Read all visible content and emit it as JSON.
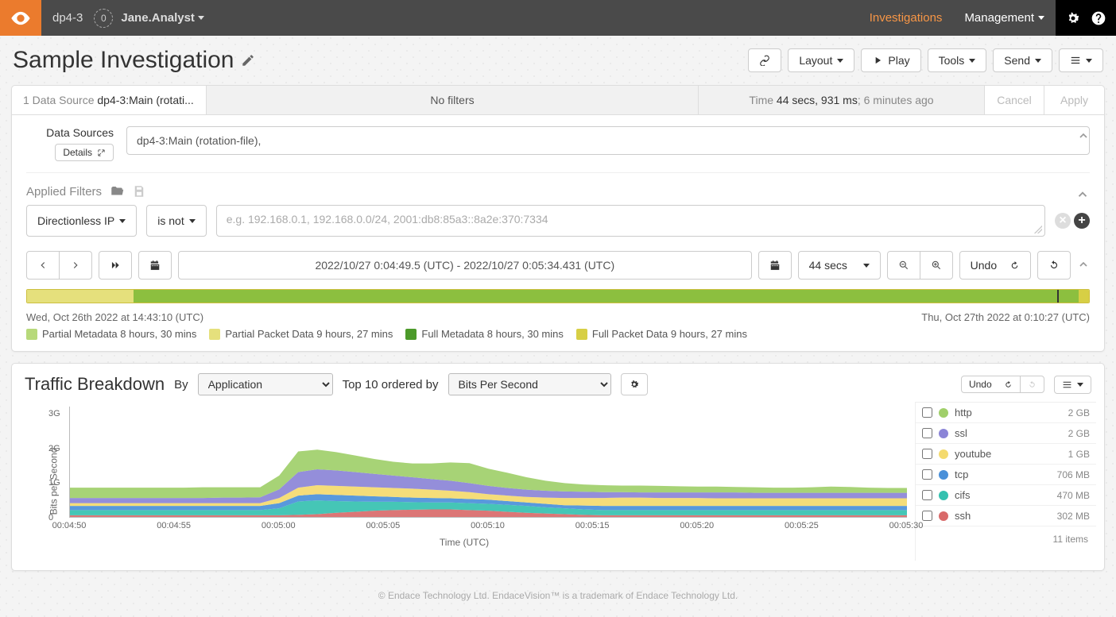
{
  "nav": {
    "host": "dp4-3",
    "badge_count": "0",
    "user": "Jane.Analyst",
    "links": {
      "investigations": "Investigations",
      "management": "Management"
    }
  },
  "page": {
    "title": "Sample Investigation",
    "toolbar": {
      "layout": "Layout",
      "play": "Play",
      "tools": "Tools",
      "send": "Send"
    }
  },
  "tabstrip": {
    "ds_prefix": "1 Data Source ",
    "ds_value": "dp4-3:Main (rotati...",
    "filters": "No filters",
    "time_prefix": "Time ",
    "time_bold": "44 secs, 931 ms",
    "time_suffix": "; 6 minutes ago",
    "cancel": "Cancel",
    "apply": "Apply"
  },
  "datasources": {
    "label": "Data Sources",
    "details_btn": "Details",
    "value": "dp4-3:Main (rotation-file),"
  },
  "filters": {
    "head_label": "Applied Filters",
    "type_btn": "Directionless IP",
    "op_btn": "is not",
    "placeholder": "e.g. 192.168.0.1, 192.168.0.0/24, 2001:db8:85a3::8a2e:370:7334"
  },
  "timebar": {
    "range_text": "2022/10/27 0:04:49.5 (UTC) - 2022/10/27 0:05:34.431 (UTC)",
    "duration_btn": "44 secs",
    "undo": "Undo"
  },
  "timeline": {
    "segments": [
      {
        "color": "#e5e07c",
        "width_pct": 10
      },
      {
        "color": "#8cbf3f",
        "width_pct": 89
      },
      {
        "color": "#d7cf45",
        "width_pct": 1
      }
    ],
    "marker_pct": 97,
    "start_label": "Wed, Oct 26th 2022 at 14:43:10 (UTC)",
    "end_label": "Thu, Oct 27th 2022 at 0:10:27 (UTC)",
    "legend": [
      {
        "color": "#b7d97a",
        "label": "Partial Metadata 8 hours, 30 mins"
      },
      {
        "color": "#e5e07c",
        "label": "Partial Packet Data 9 hours, 27 mins"
      },
      {
        "color": "#4c9a2a",
        "label": "Full Metadata 8 hours, 30 mins"
      },
      {
        "color": "#d7cf45",
        "label": "Full Packet Data 9 hours, 27 mins"
      }
    ]
  },
  "traffic": {
    "title": "Traffic Breakdown",
    "by_label": "By",
    "by_value": "Application",
    "order_label": "Top 10 ordered by",
    "order_value": "Bits Per Second",
    "undo": "Undo",
    "chart": {
      "type": "stacked-area",
      "ylabel": "Bits per Second",
      "xlabel": "Time (UTC)",
      "ylim": [
        0,
        3.2
      ],
      "yticks": [
        {
          "v": 0,
          "label": "0"
        },
        {
          "v": 1,
          "label": "1G"
        },
        {
          "v": 2,
          "label": "2G"
        },
        {
          "v": 3,
          "label": "3G"
        }
      ],
      "xticks": [
        "00:04:50",
        "00:04:55",
        "00:05:00",
        "00:05:05",
        "00:05:10",
        "00:05:15",
        "00:05:20",
        "00:05:25",
        "00:05:30"
      ],
      "background": "#ffffff",
      "axis_color": "#bbbbbb",
      "series_colors": {
        "http": "#a0cf6a",
        "ssl": "#8b84d7",
        "youtube": "#f4da6e",
        "tcp": "#4a90d9",
        "cifs": "#35c1b0",
        "ssh": "#d96a6a"
      },
      "x": [
        0,
        1,
        2,
        3,
        4,
        5,
        6,
        7,
        8,
        9,
        10,
        11,
        12,
        13,
        14,
        15,
        16,
        17,
        18,
        19,
        20,
        21,
        22,
        23,
        24,
        25,
        26,
        27,
        28,
        29,
        30,
        31,
        32,
        33,
        34,
        35,
        36,
        37,
        38,
        39,
        40,
        41,
        42,
        43,
        44
      ],
      "stack_top": {
        "ssh": [
          0.05,
          0.05,
          0.05,
          0.05,
          0.05,
          0.05,
          0.05,
          0.05,
          0.05,
          0.05,
          0.05,
          0.05,
          0.06,
          0.08,
          0.12,
          0.15,
          0.18,
          0.2,
          0.21,
          0.22,
          0.22,
          0.2,
          0.18,
          0.15,
          0.12,
          0.1,
          0.08,
          0.06,
          0.05,
          0.05,
          0.05,
          0.05,
          0.05,
          0.05,
          0.05,
          0.05,
          0.05,
          0.05,
          0.05,
          0.05,
          0.05,
          0.05,
          0.05,
          0.05,
          0.05
        ],
        "cifs": [
          0.2,
          0.2,
          0.2,
          0.2,
          0.2,
          0.2,
          0.2,
          0.2,
          0.2,
          0.2,
          0.2,
          0.25,
          0.45,
          0.48,
          0.46,
          0.45,
          0.44,
          0.44,
          0.43,
          0.42,
          0.42,
          0.4,
          0.38,
          0.35,
          0.32,
          0.28,
          0.25,
          0.22,
          0.2,
          0.2,
          0.2,
          0.2,
          0.2,
          0.2,
          0.2,
          0.2,
          0.2,
          0.2,
          0.2,
          0.2,
          0.2,
          0.2,
          0.2,
          0.2,
          0.2
        ],
        "tcp": [
          0.32,
          0.32,
          0.32,
          0.32,
          0.32,
          0.32,
          0.32,
          0.32,
          0.32,
          0.32,
          0.32,
          0.4,
          0.62,
          0.66,
          0.64,
          0.62,
          0.6,
          0.58,
          0.56,
          0.55,
          0.54,
          0.52,
          0.5,
          0.46,
          0.42,
          0.38,
          0.34,
          0.33,
          0.32,
          0.32,
          0.32,
          0.32,
          0.32,
          0.32,
          0.32,
          0.32,
          0.32,
          0.32,
          0.32,
          0.32,
          0.32,
          0.32,
          0.32,
          0.32,
          0.32
        ],
        "youtube": [
          0.4,
          0.4,
          0.4,
          0.4,
          0.4,
          0.4,
          0.4,
          0.4,
          0.4,
          0.4,
          0.4,
          0.55,
          0.85,
          0.92,
          0.9,
          0.88,
          0.86,
          0.84,
          0.82,
          0.79,
          0.76,
          0.72,
          0.66,
          0.62,
          0.58,
          0.56,
          0.55,
          0.55,
          0.55,
          0.56,
          0.56,
          0.55,
          0.55,
          0.55,
          0.54,
          0.54,
          0.54,
          0.54,
          0.54,
          0.54,
          0.54,
          0.54,
          0.54,
          0.54,
          0.54
        ],
        "ssl": [
          0.55,
          0.55,
          0.55,
          0.55,
          0.55,
          0.55,
          0.55,
          0.55,
          0.56,
          0.56,
          0.57,
          0.8,
          1.3,
          1.38,
          1.35,
          1.3,
          1.25,
          1.2,
          1.15,
          1.1,
          1.05,
          0.98,
          0.9,
          0.84,
          0.79,
          0.76,
          0.74,
          0.73,
          0.72,
          0.72,
          0.71,
          0.71,
          0.71,
          0.71,
          0.71,
          0.71,
          0.7,
          0.7,
          0.7,
          0.7,
          0.7,
          0.7,
          0.7,
          0.7,
          0.7
        ],
        "http": [
          0.85,
          0.85,
          0.85,
          0.85,
          0.85,
          0.85,
          0.85,
          0.86,
          0.86,
          0.86,
          0.86,
          1.2,
          1.9,
          1.95,
          1.88,
          1.78,
          1.68,
          1.6,
          1.55,
          1.55,
          1.58,
          1.56,
          1.4,
          1.28,
          1.15,
          1.05,
          0.98,
          0.94,
          0.92,
          0.91,
          0.91,
          0.9,
          0.89,
          0.88,
          0.88,
          0.87,
          0.86,
          0.85,
          0.85,
          0.86,
          0.88,
          0.87,
          0.85,
          0.84,
          0.84
        ]
      },
      "stack_order_bottom_to_top": [
        "ssh",
        "cifs",
        "tcp",
        "youtube",
        "ssl",
        "http"
      ]
    },
    "legend": {
      "items": [
        {
          "color": "#a0cf6a",
          "name": "http",
          "value": "2 GB"
        },
        {
          "color": "#8b84d7",
          "name": "ssl",
          "value": "2 GB"
        },
        {
          "color": "#f4da6e",
          "name": "youtube",
          "value": "1 GB"
        },
        {
          "color": "#4a90d9",
          "name": "tcp",
          "value": "706 MB"
        },
        {
          "color": "#35c1b0",
          "name": "cifs",
          "value": "470 MB"
        },
        {
          "color": "#d96a6a",
          "name": "ssh",
          "value": "302 MB"
        }
      ],
      "total_label": "11 items"
    }
  },
  "footer": "© Endace Technology Ltd. EndaceVision™ is a trademark of Endace Technology Ltd."
}
